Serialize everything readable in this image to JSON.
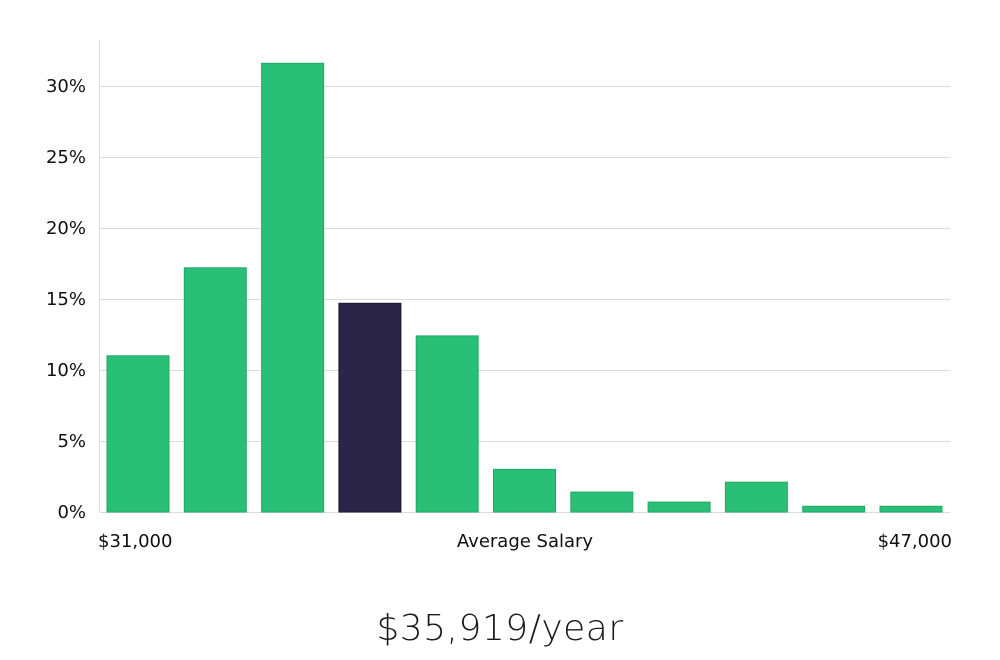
{
  "chart_data": {
    "type": "bar",
    "title": "",
    "xlabel": "Average Salary",
    "x_range_labels": [
      "$31,000",
      "$47,000"
    ],
    "ylabel": "",
    "ylim": [
      0,
      30
    ],
    "yticks": [
      0,
      5,
      10,
      15,
      20,
      25,
      30
    ],
    "ytick_labels": [
      "0%",
      "5%",
      "10%",
      "15%",
      "20%",
      "25%",
      "30%"
    ],
    "values": [
      11.0,
      17.2,
      31.6,
      14.7,
      12.4,
      3.0,
      1.4,
      0.7,
      2.1,
      0.4,
      0.4
    ],
    "highlight_index": 3,
    "grid": true,
    "colors": {
      "bar": "#2abf76",
      "highlight": "#2a2546",
      "grid": "#dcdcdc"
    }
  },
  "summary": {
    "value": "$35,919/year"
  }
}
